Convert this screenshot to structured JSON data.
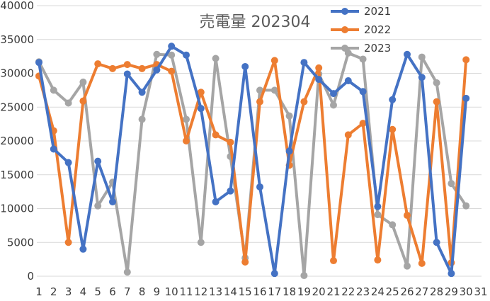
{
  "chart_data": {
    "type": "line",
    "title": "売電量 202304",
    "xlabel": "",
    "ylabel": "",
    "categories": [
      "1",
      "2",
      "3",
      "4",
      "5",
      "6",
      "7",
      "8",
      "9",
      "10",
      "11",
      "12",
      "13",
      "14",
      "15",
      "16",
      "17",
      "18",
      "19",
      "20",
      "21",
      "22",
      "23",
      "24",
      "25",
      "26",
      "27",
      "28",
      "29",
      "30",
      "31"
    ],
    "ylim": [
      0,
      40000
    ],
    "yticks": [
      0,
      5000,
      10000,
      15000,
      20000,
      25000,
      30000,
      35000,
      40000
    ],
    "grid": true,
    "legend_position": "top-right",
    "series": [
      {
        "name": "2021",
        "color": "#4472C4",
        "values": [
          31600,
          18800,
          16800,
          4000,
          17000,
          11000,
          29900,
          27200,
          30500,
          34000,
          32700,
          24800,
          11000,
          12600,
          31000,
          13200,
          400,
          18500,
          31600,
          29100,
          27000,
          28900,
          27300,
          10300,
          26100,
          32800,
          29400,
          5000,
          400,
          26300,
          null
        ]
      },
      {
        "name": "2022",
        "color": "#ED7D31",
        "values": [
          29600,
          21500,
          5000,
          25900,
          31400,
          30700,
          31300,
          30700,
          31300,
          30300,
          20000,
          27200,
          20900,
          19800,
          2100,
          25800,
          31900,
          16400,
          25800,
          30800,
          2300,
          20900,
          22600,
          2400,
          21700,
          9000,
          1900,
          25800,
          2000,
          32000,
          null
        ]
      },
      {
        "name": "2023",
        "color": "#A5A5A5",
        "values": [
          31700,
          27500,
          25600,
          28700,
          10400,
          13900,
          600,
          23200,
          32800,
          32700,
          23200,
          5000,
          32200,
          17700,
          2700,
          27500,
          27500,
          23700,
          100,
          29900,
          25300,
          33000,
          32100,
          9100,
          7600,
          1500,
          32400,
          28600,
          13700,
          10400,
          null
        ]
      }
    ]
  }
}
